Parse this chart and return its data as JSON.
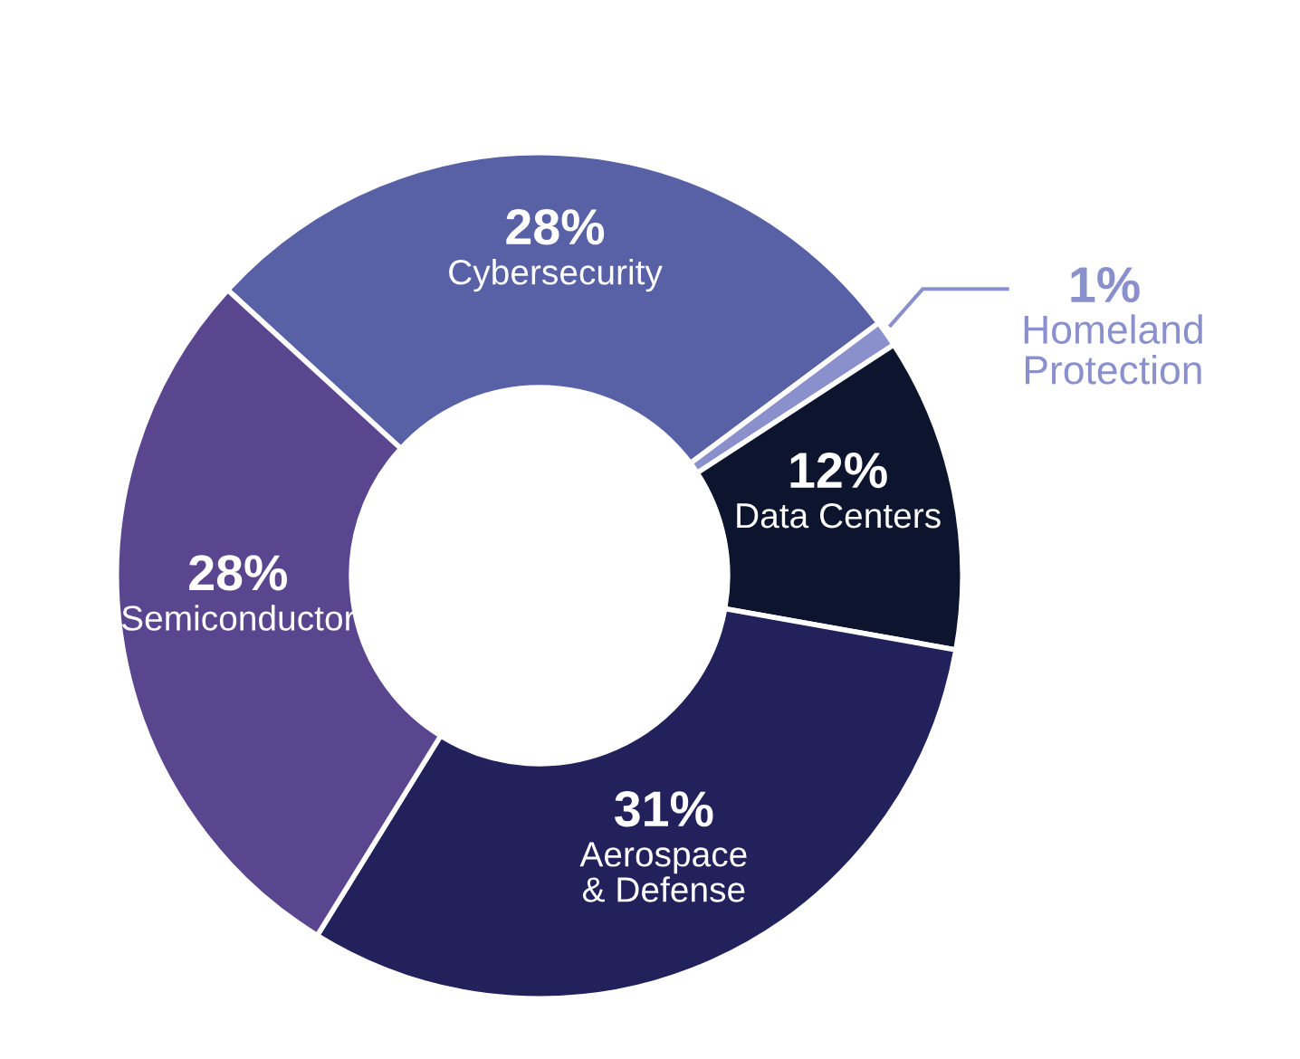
{
  "chart_data": {
    "type": "donut",
    "categories": [
      "Cybersecurity",
      "Homeland\nProtection",
      "Data Centers",
      "Aerospace\n& Defense",
      "Semiconductor"
    ],
    "values": [
      28,
      1,
      12,
      31,
      28
    ],
    "value_labels": [
      "28%",
      "1%",
      "12%",
      "31%",
      "28%"
    ],
    "colors": [
      "#5860a6",
      "#8a90cc",
      "#0d142e",
      "#22215c",
      "#5a468f"
    ],
    "legend": false
  }
}
